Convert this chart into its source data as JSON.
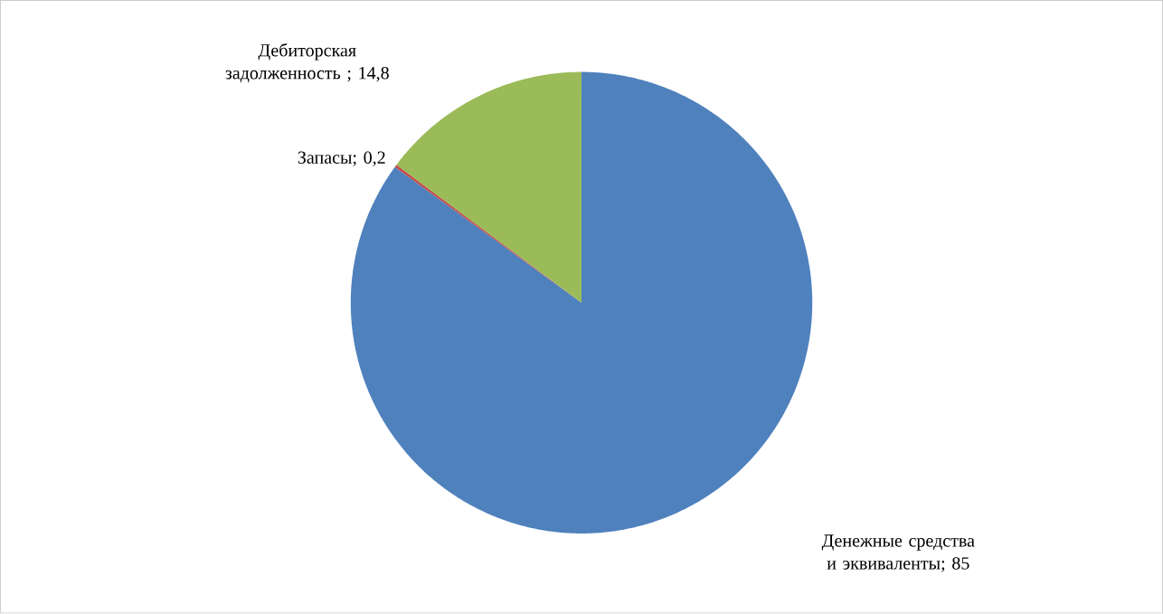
{
  "chart_data": {
    "type": "pie",
    "categories": [
      "Денежные средства и эквиваленты",
      "Запасы",
      "Дебиторская задолженность "
    ],
    "values": [
      85,
      0.2,
      14.8
    ],
    "colors": [
      "#4f81bd",
      "#c0504d",
      "#9bbb59"
    ],
    "value_labels": [
      "; 85",
      "; 0,2",
      "; 14,8"
    ]
  }
}
